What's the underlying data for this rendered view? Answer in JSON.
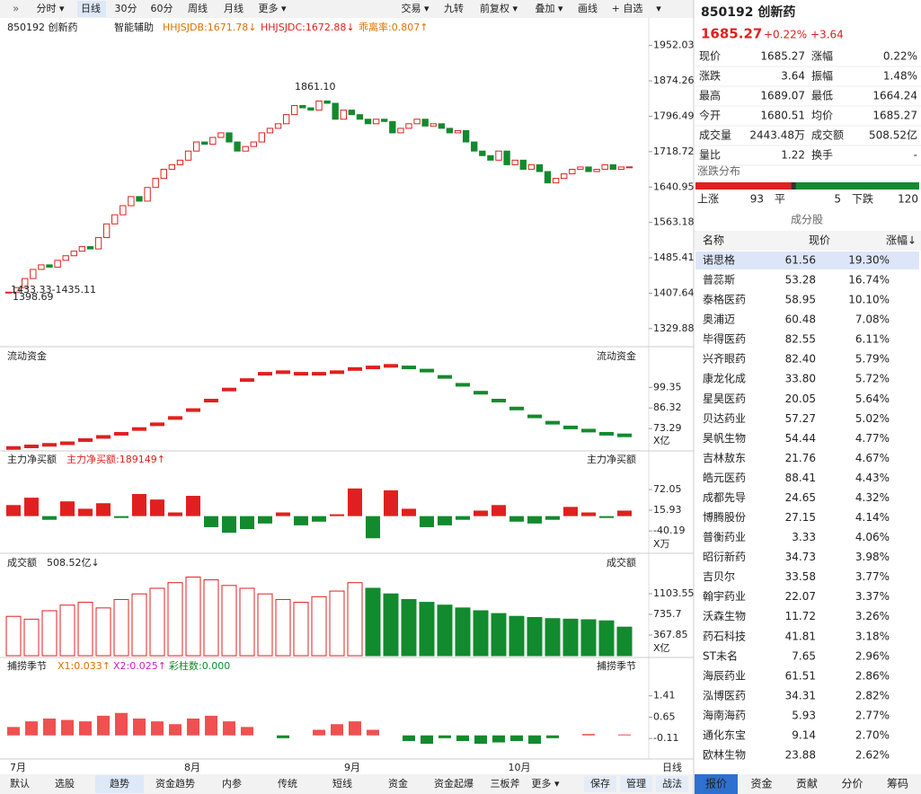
{
  "toolbar": {
    "left": [
      "分时 ▾",
      "日线",
      "30分",
      "60分",
      "周线",
      "月线",
      "更多 ▾"
    ],
    "right": [
      "交易 ▾",
      "九转",
      "前复权 ▾",
      "叠加 ▾",
      "画线",
      "+ 自选",
      "▾"
    ]
  },
  "main": {
    "name": "850192 创新药",
    "assist": "智能辅助",
    "ind1": "HHJSJDB:1671.78↓",
    "ind2": "HHJSJDC:1672.88↓",
    "ind3": "乖离率:0.807↑",
    "ylim": [
      1302,
      1973
    ],
    "yticks": [
      1952.03,
      1874.26,
      1796.49,
      1718.72,
      1640.95,
      1563.18,
      1485.41,
      1407.64,
      1329.88
    ],
    "high_label": "1861.10",
    "low_label": "1398.69",
    "range_label": "1433.33-1435.11",
    "closes": [
      1410,
      1420,
      1440,
      1460,
      1470,
      1465,
      1480,
      1490,
      1500,
      1510,
      1505,
      1530,
      1560,
      1580,
      1600,
      1620,
      1610,
      1640,
      1660,
      1680,
      1690,
      1700,
      1720,
      1740,
      1735,
      1750,
      1760,
      1740,
      1720,
      1730,
      1740,
      1760,
      1770,
      1780,
      1800,
      1820,
      1815,
      1810,
      1830,
      1825,
      1790,
      1810,
      1800,
      1790,
      1780,
      1790,
      1785,
      1760,
      1770,
      1780,
      1790,
      1775,
      1780,
      1770,
      1760,
      1765,
      1740,
      1720,
      1710,
      1700,
      1720,
      1690,
      1700,
      1680,
      1690,
      1675,
      1650,
      1660,
      1670,
      1680,
      1685,
      1675,
      1680,
      1690,
      1680,
      1685,
      1685.27
    ]
  },
  "flow": {
    "title": "流动资金",
    "unit": "X亿",
    "ylim": [
      62,
      120
    ],
    "yticks": [
      99.35,
      86.32,
      73.29
    ],
    "values": [
      61,
      62,
      63,
      64,
      66,
      68,
      70,
      73,
      76,
      80,
      85,
      91,
      98,
      104,
      108,
      109,
      108,
      108,
      109,
      111,
      112,
      113,
      112,
      110,
      106,
      101,
      96,
      91,
      86,
      81,
      77,
      74,
      72,
      70,
      69
    ]
  },
  "net": {
    "title": "主力净买额",
    "label": "主力净买额:189149↑",
    "unit": "X万",
    "ylim": [
      -91,
      133
    ],
    "yticks": [
      72.05,
      15.93,
      -40.19
    ],
    "values": [
      30,
      50,
      -10,
      40,
      20,
      35,
      -5,
      60,
      45,
      10,
      55,
      -30,
      -45,
      -35,
      -20,
      10,
      -25,
      -15,
      5,
      75,
      -60,
      70,
      20,
      -30,
      -25,
      -10,
      15,
      30,
      -15,
      -20,
      -10,
      25,
      10,
      -5,
      15
    ]
  },
  "volume": {
    "title": "成交额",
    "label": "508.52亿↓",
    "unit": "X亿",
    "ylim": [
      0,
      1503
    ],
    "yticks": [
      1103.55,
      735.7,
      367.85
    ],
    "values": [
      700,
      650,
      800,
      900,
      950,
      850,
      1000,
      1100,
      1200,
      1300,
      1400,
      1350,
      1250,
      1200,
      1100,
      1000,
      950,
      1050,
      1150,
      1300,
      1200,
      1100,
      1000,
      950,
      900,
      850,
      800,
      750,
      700,
      680,
      660,
      650,
      640,
      620,
      508.52
    ]
  },
  "season": {
    "title": "捕捞季节",
    "x1": "X1:0.033↑",
    "x2": "X2:0.025↑",
    "bars": "彩柱数:0.000",
    "ylim": [
      -0.84,
      2.2
    ],
    "yticks": [
      1.41,
      0.65,
      -0.11
    ],
    "values": [
      0.3,
      0.5,
      0.6,
      0.55,
      0.5,
      0.7,
      0.8,
      0.6,
      0.5,
      0.4,
      0.6,
      0.7,
      0.5,
      0.3,
      0.0,
      -0.1,
      0.0,
      0.2,
      0.4,
      0.5,
      0.2,
      0.0,
      -0.2,
      -0.3,
      -0.1,
      -0.2,
      -0.3,
      -0.25,
      -0.2,
      -0.3,
      -0.1,
      0.0,
      0.05,
      0.0,
      0.033
    ]
  },
  "xaxis": {
    "months": [
      "7月",
      "8月",
      "9月",
      "10月"
    ],
    "period": "日线"
  },
  "bottom_tabs": [
    "默认",
    "选股",
    "趋势",
    "资金趋势",
    "内参",
    "传统",
    "短线",
    "资金",
    "资金起爆",
    "三板斧",
    "更多 ▾",
    "保存",
    "管理",
    "战法"
  ],
  "quote": {
    "title": "850192 创新药",
    "price": "1685.27",
    "pct": "+0.22%",
    "chg": "+3.64",
    "rows": [
      [
        "现价",
        "1685.27",
        "涨幅",
        "0.22%"
      ],
      [
        "涨跌",
        "3.64",
        "振幅",
        "1.48%"
      ],
      [
        "最高",
        "1689.07",
        "最低",
        "1664.24"
      ],
      [
        "今开",
        "1680.51",
        "均价",
        "1685.27"
      ],
      [
        "成交量",
        "2443.48万",
        "成交额",
        "508.52亿"
      ],
      [
        "量比",
        "1.22",
        "换手",
        "-"
      ]
    ],
    "dist_title": "涨跌分布",
    "up_label": "上涨",
    "up": 93,
    "flat_label": "平",
    "flat": 5,
    "down_label": "下跌",
    "down": 120,
    "const_title": "成分股",
    "headers": [
      "名称",
      "现价",
      "涨幅↓"
    ],
    "stocks": [
      [
        "诺思格",
        "61.56",
        "19.30%"
      ],
      [
        "普蕊斯",
        "53.28",
        "16.74%"
      ],
      [
        "泰格医药",
        "58.95",
        "10.10%"
      ],
      [
        "奥浦迈",
        "60.48",
        "7.08%"
      ],
      [
        "毕得医药",
        "82.55",
        "6.11%"
      ],
      [
        "兴齐眼药",
        "82.40",
        "5.79%"
      ],
      [
        "康龙化成",
        "33.80",
        "5.72%"
      ],
      [
        "星昊医药",
        "20.05",
        "5.64%"
      ],
      [
        "贝达药业",
        "57.27",
        "5.02%"
      ],
      [
        "昊帆生物",
        "54.44",
        "4.77%"
      ],
      [
        "吉林敖东",
        "21.76",
        "4.67%"
      ],
      [
        "皓元医药",
        "88.41",
        "4.43%"
      ],
      [
        "成都先导",
        "24.65",
        "4.32%"
      ],
      [
        "博腾股份",
        "27.15",
        "4.14%"
      ],
      [
        "普衡药业",
        "3.33",
        "4.06%"
      ],
      [
        "昭衍新药",
        "34.73",
        "3.98%"
      ],
      [
        "吉贝尔",
        "33.58",
        "3.77%"
      ],
      [
        "翰宇药业",
        "22.07",
        "3.37%"
      ],
      [
        "沃森生物",
        "11.72",
        "3.26%"
      ],
      [
        "药石科技",
        "41.81",
        "3.18%"
      ],
      [
        "ST未名",
        "7.65",
        "2.96%"
      ],
      [
        "海辰药业",
        "61.51",
        "2.86%"
      ],
      [
        "泓博医药",
        "34.31",
        "2.82%"
      ],
      [
        "海南海药",
        "5.93",
        "2.77%"
      ],
      [
        "通化东宝",
        "9.14",
        "2.70%"
      ],
      [
        "欧林生物",
        "23.88",
        "2.62%"
      ]
    ],
    "tabs": [
      "报价",
      "资金",
      "贡献",
      "分价",
      "筹码"
    ]
  }
}
